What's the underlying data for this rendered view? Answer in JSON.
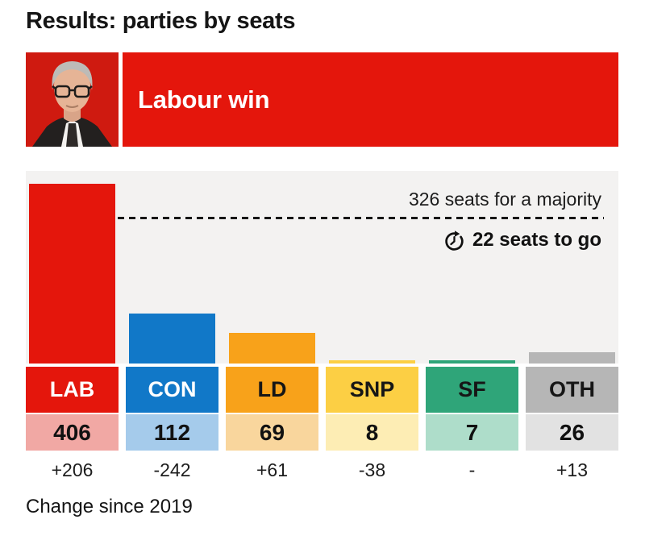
{
  "header": {
    "title": "Results: parties by seats"
  },
  "banner": {
    "headline": "Labour win",
    "photo_alt": "Keir Starmer portrait",
    "color": "#e4160c"
  },
  "footer": {
    "note": "Change since 2019"
  },
  "chart_data": {
    "type": "bar",
    "title": "Results: parties by seats",
    "categories": [
      "LAB",
      "CON",
      "LD",
      "SNP",
      "SF",
      "OTH"
    ],
    "values": [
      406,
      112,
      69,
      8,
      7,
      26
    ],
    "changes": [
      "+206",
      "-242",
      "+61",
      "-38",
      "-",
      "+13"
    ],
    "majority_line": {
      "seats": 326,
      "label": "326 seats for a majority"
    },
    "seats_to_go": {
      "value": 22,
      "label": "22 seats to go"
    },
    "note": "Change since 2019",
    "ylim": [
      0,
      434
    ],
    "grid": false,
    "legend_position": "none",
    "panel_background": "#f3f2f1",
    "parties": [
      {
        "name": "LAB",
        "seats": 406,
        "change": "+206",
        "bar_color": "#e4160c",
        "tint_color": "#f1a8a4",
        "label_color": "#ffffff"
      },
      {
        "name": "CON",
        "seats": 112,
        "change": "-242",
        "bar_color": "#1178c8",
        "tint_color": "#a5cbeb",
        "label_color": "#ffffff"
      },
      {
        "name": "LD",
        "seats": 69,
        "change": "+61",
        "bar_color": "#f8a21a",
        "tint_color": "#f9d69d",
        "label_color": "#161616"
      },
      {
        "name": "SNP",
        "seats": 8,
        "change": "-38",
        "bar_color": "#fccf44",
        "tint_color": "#fdedb4",
        "label_color": "#161616"
      },
      {
        "name": "SF",
        "seats": 7,
        "change": "-",
        "bar_color": "#2fa579",
        "tint_color": "#aeddca",
        "label_color": "#161616"
      },
      {
        "name": "OTH",
        "seats": 26,
        "change": "+13",
        "bar_color": "#b6b6b6",
        "tint_color": "#e2e2e2",
        "label_color": "#161616"
      }
    ]
  }
}
